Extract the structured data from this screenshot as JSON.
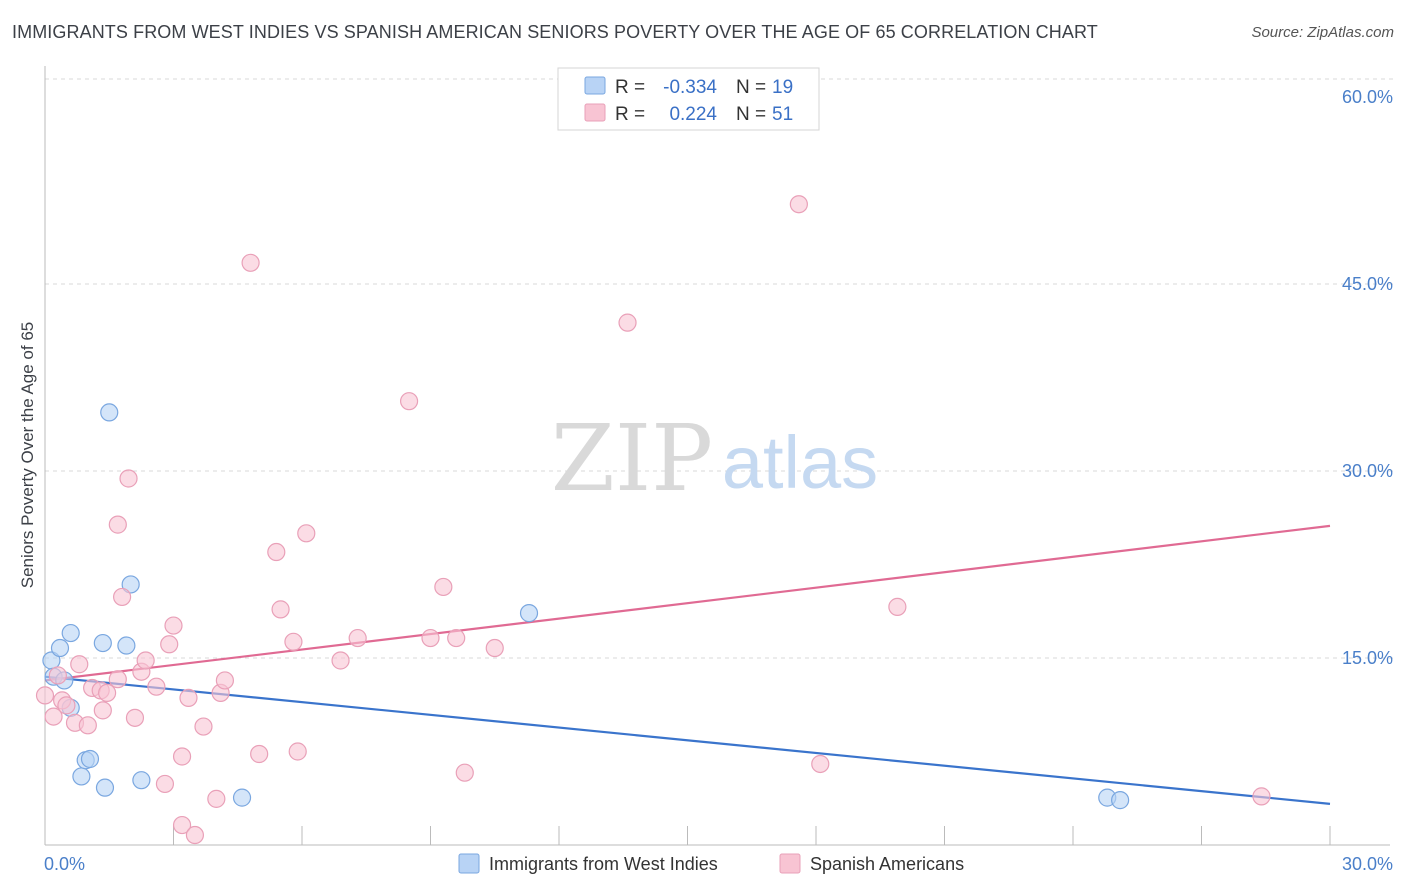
{
  "title": "IMMIGRANTS FROM WEST INDIES VS SPANISH AMERICAN SENIORS POVERTY OVER THE AGE OF 65 CORRELATION CHART",
  "source": "Source: ZipAtlas.com",
  "watermark": {
    "zip": "ZIP",
    "atlas": "atlas"
  },
  "colors": {
    "blue_fill": "#b8d3f5",
    "blue_stroke": "#7aa7e0",
    "blue_line": "#3a74cc",
    "pink_fill": "#f8c4d3",
    "pink_stroke": "#e9a0b8",
    "pink_line": "#e06a93",
    "tick_label": "#4a7fc9",
    "grid": "#d8d8d8"
  },
  "legend": {
    "rows": [
      {
        "r_label": "R =",
        "r_value": "-0.334",
        "n_label": "N =",
        "n_value": "19",
        "color": "blue"
      },
      {
        "r_label": "R =",
        "r_value": "0.224",
        "n_label": "N =",
        "n_value": "51",
        "color": "pink"
      }
    ]
  },
  "chart_data": {
    "type": "scatter",
    "title": "IMMIGRANTS FROM WEST INDIES VS SPANISH AMERICAN SENIORS POVERTY OVER THE AGE OF 65 CORRELATION CHART",
    "xlabel": "",
    "ylabel": "Seniors Poverty Over the Age of 65",
    "xlim": [
      0,
      30
    ],
    "ylim": [
      0,
      60
    ],
    "x_tick_labels": [
      "0.0%",
      "30.0%"
    ],
    "y_ticks": [
      15,
      30,
      45,
      60
    ],
    "y_tick_labels": [
      "15.0%",
      "30.0%",
      "45.0%",
      "60.0%"
    ],
    "grid": true,
    "series": [
      {
        "name": "Immigrants from West Indies",
        "color": "blue",
        "trend": {
          "x": [
            0,
            30
          ],
          "y": [
            13.5,
            3.3
          ]
        },
        "points": [
          {
            "x": 0.15,
            "y": 14.8
          },
          {
            "x": 0.2,
            "y": 13.5
          },
          {
            "x": 0.35,
            "y": 15.8
          },
          {
            "x": 0.45,
            "y": 13.2
          },
          {
            "x": 0.6,
            "y": 17.0
          },
          {
            "x": 0.6,
            "y": 11.0
          },
          {
            "x": 0.85,
            "y": 5.5
          },
          {
            "x": 0.95,
            "y": 6.8
          },
          {
            "x": 1.05,
            "y": 6.9
          },
          {
            "x": 1.35,
            "y": 16.2
          },
          {
            "x": 1.4,
            "y": 4.6
          },
          {
            "x": 1.5,
            "y": 34.7
          },
          {
            "x": 1.9,
            "y": 16.0
          },
          {
            "x": 2.0,
            "y": 20.9
          },
          {
            "x": 2.25,
            "y": 5.2
          },
          {
            "x": 4.6,
            "y": 3.8
          },
          {
            "x": 11.3,
            "y": 18.6
          },
          {
            "x": 24.8,
            "y": 3.8
          },
          {
            "x": 25.1,
            "y": 3.6
          }
        ]
      },
      {
        "name": "Spanish Americans",
        "color": "pink",
        "trend": {
          "x": [
            0,
            30
          ],
          "y": [
            13.2,
            25.6
          ]
        },
        "points": [
          {
            "x": 0.2,
            "y": 10.3
          },
          {
            "x": 0.3,
            "y": 13.6
          },
          {
            "x": 0.4,
            "y": 11.6
          },
          {
            "x": 0.5,
            "y": 11.2
          },
          {
            "x": 0.7,
            "y": 9.8
          },
          {
            "x": 0.8,
            "y": 14.5
          },
          {
            "x": 1.0,
            "y": 9.6
          },
          {
            "x": 1.1,
            "y": 12.6
          },
          {
            "x": 1.3,
            "y": 12.4
          },
          {
            "x": 1.35,
            "y": 10.8
          },
          {
            "x": 1.45,
            "y": 12.2
          },
          {
            "x": 1.7,
            "y": 13.3
          },
          {
            "x": 1.7,
            "y": 25.7
          },
          {
            "x": 1.8,
            "y": 19.9
          },
          {
            "x": 1.95,
            "y": 29.4
          },
          {
            "x": 2.1,
            "y": 10.2
          },
          {
            "x": 2.25,
            "y": 13.9
          },
          {
            "x": 2.35,
            "y": 14.8
          },
          {
            "x": 2.6,
            "y": 12.7
          },
          {
            "x": 2.8,
            "y": 4.9
          },
          {
            "x": 2.9,
            "y": 16.1
          },
          {
            "x": 3.0,
            "y": 17.6
          },
          {
            "x": 3.2,
            "y": 1.6
          },
          {
            "x": 3.2,
            "y": 7.1
          },
          {
            "x": 3.35,
            "y": 11.8
          },
          {
            "x": 3.5,
            "y": 0.8
          },
          {
            "x": 3.7,
            "y": 9.5
          },
          {
            "x": 4.0,
            "y": 3.7
          },
          {
            "x": 4.1,
            "y": 12.2
          },
          {
            "x": 4.2,
            "y": 13.2
          },
          {
            "x": 4.8,
            "y": 46.7
          },
          {
            "x": 5.0,
            "y": 7.3
          },
          {
            "x": 5.4,
            "y": 23.5
          },
          {
            "x": 5.5,
            "y": 18.9
          },
          {
            "x": 5.8,
            "y": 16.3
          },
          {
            "x": 5.9,
            "y": 7.5
          },
          {
            "x": 6.1,
            "y": 25.0
          },
          {
            "x": 6.9,
            "y": 14.8
          },
          {
            "x": 7.3,
            "y": 16.6
          },
          {
            "x": 8.5,
            "y": 35.6
          },
          {
            "x": 9.0,
            "y": 16.6
          },
          {
            "x": 9.3,
            "y": 20.7
          },
          {
            "x": 9.6,
            "y": 16.6
          },
          {
            "x": 9.8,
            "y": 5.8
          },
          {
            "x": 10.5,
            "y": 15.8
          },
          {
            "x": 13.6,
            "y": 41.9
          },
          {
            "x": 17.6,
            "y": 51.4
          },
          {
            "x": 18.1,
            "y": 6.5
          },
          {
            "x": 19.9,
            "y": 19.1
          },
          {
            "x": 28.4,
            "y": 3.9
          },
          {
            "x": 0.0,
            "y": 12.0
          }
        ]
      }
    ]
  }
}
